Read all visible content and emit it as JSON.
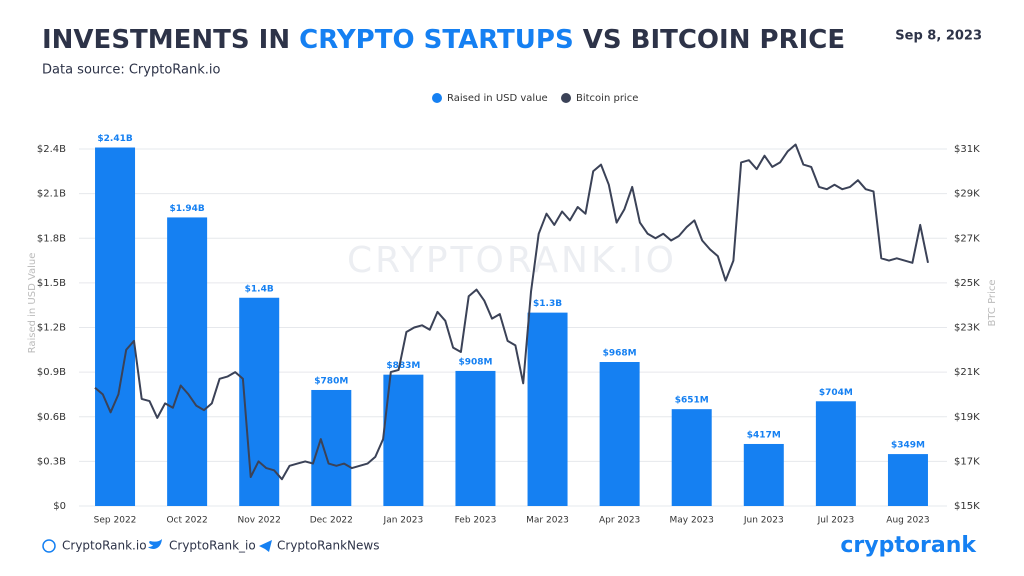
{
  "chart_data": {
    "type": "combo",
    "title_parts": [
      "INVESTMENTS IN ",
      "CRYPTO STARTUPS",
      " VS BITCOIN PRICE"
    ],
    "date": "Sep 8, 2023",
    "subtitle": "Data source: CryptoRank.io",
    "watermark": "CRYPTORANK.IO",
    "ylabel": "Raised in USD Value",
    "y2label": "BTC Price",
    "categories": [
      "Sep 2022",
      "Oct 2022",
      "Nov 2022",
      "Dec 2022",
      "Jan 2023",
      "Feb 2023",
      "Mar 2023",
      "Apr 2023",
      "May 2023",
      "Jun 2023",
      "Jul 2023",
      "Aug 2023"
    ],
    "bars": {
      "name": "Raised in USD value",
      "color": "#1580f2",
      "values": [
        2410000000,
        1940000000,
        1400000000,
        780000000,
        883000000,
        908000000,
        1300000000,
        968000000,
        651000000,
        417000000,
        704000000,
        349000000
      ],
      "value_labels": [
        "$2.41B",
        "$1.94B",
        "$1.4B",
        "$780M",
        "$883M",
        "$908M",
        "$1.3B",
        "$968M",
        "$651M",
        "$417M",
        "$704M",
        "$349M"
      ]
    },
    "line": {
      "name": "Bitcoin price",
      "color": "#3b4257",
      "axis": "y2",
      "values": [
        20300,
        20000,
        19200,
        20000,
        22000,
        22400,
        19800,
        19700,
        18950,
        19600,
        19400,
        20400,
        20000,
        19500,
        19300,
        19600,
        20700,
        20800,
        21000,
        20700,
        16300,
        17000,
        16700,
        16600,
        16200,
        16800,
        16900,
        17000,
        16900,
        18000,
        16900,
        16800,
        16900,
        16700,
        16800,
        16900,
        17200,
        18000,
        21000,
        21100,
        22800,
        23000,
        23100,
        22900,
        23700,
        23300,
        22100,
        21900,
        24400,
        24700,
        24200,
        23400,
        23600,
        22400,
        22200,
        20500,
        24600,
        27200,
        28100,
        27600,
        28200,
        27800,
        28400,
        28100,
        30000,
        30300,
        29400,
        27700,
        28300,
        29300,
        27700,
        27200,
        27000,
        27200,
        26900,
        27100,
        27500,
        27800,
        26900,
        26500,
        26200,
        25100,
        26000,
        30400,
        30500,
        30100,
        30700,
        30200,
        30400,
        30900,
        31200,
        30300,
        30200,
        29300,
        29200,
        29400,
        29200,
        29300,
        29600,
        29200,
        29100,
        26100,
        26000,
        26100,
        26000,
        25900,
        27600,
        25900
      ]
    },
    "ylim": [
      0,
      2400000000
    ],
    "yticks": [
      {
        "value": 0,
        "label": "$0"
      },
      {
        "value": 300000000,
        "label": "$0.3B"
      },
      {
        "value": 600000000,
        "label": "$0.6B"
      },
      {
        "value": 900000000,
        "label": "$0.9B"
      },
      {
        "value": 1200000000,
        "label": "$1.2B"
      },
      {
        "value": 1500000000,
        "label": "$1.5B"
      },
      {
        "value": 1800000000,
        "label": "$1.8B"
      },
      {
        "value": 2100000000,
        "label": "$2.1B"
      },
      {
        "value": 2400000000,
        "label": "$2.4B"
      }
    ],
    "y2lim": [
      15000,
      31000
    ],
    "y2ticks": [
      {
        "value": 15000,
        "label": "$15K"
      },
      {
        "value": 17000,
        "label": "$17K"
      },
      {
        "value": 19000,
        "label": "$19K"
      },
      {
        "value": 21000,
        "label": "$21K"
      },
      {
        "value": 23000,
        "label": "$23K"
      },
      {
        "value": 25000,
        "label": "$25K"
      },
      {
        "value": 27000,
        "label": "$27K"
      },
      {
        "value": 29000,
        "label": "$29K"
      },
      {
        "value": 31000,
        "label": "$31K"
      }
    ],
    "grid": true,
    "footer": [
      "CryptoRank.io",
      "CryptoRank_io",
      "CryptoRankNews"
    ],
    "logo": "cryptorank"
  }
}
